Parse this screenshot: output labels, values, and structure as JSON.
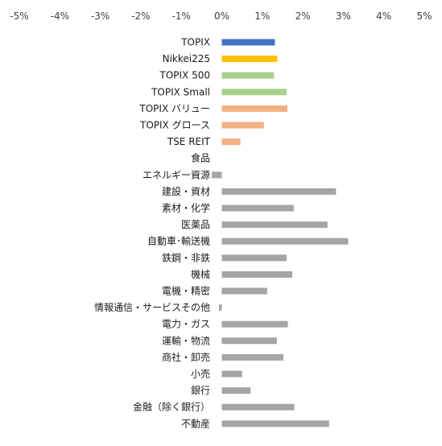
{
  "chart_data": {
    "type": "bar",
    "orientation": "horizontal",
    "title": "",
    "xlabel": "",
    "ylabel": "",
    "xlim": [
      -5,
      5
    ],
    "x_ticks": [
      "-5%",
      "-4%",
      "-3%",
      "-2%",
      "-1%",
      "0%",
      "1%",
      "2%",
      "3%",
      "4%",
      "5%"
    ],
    "x_axis_position": "top",
    "grid": false,
    "legend": "none",
    "categories": [
      "TOPIX",
      "Nikkei225",
      "TOPIX 500",
      "TOPIX Small",
      "TOPIX バリュー",
      "TOPIX グロース",
      "TSE REIT",
      "食品",
      "エネルギー資源",
      "建設・資材",
      "素材・化学",
      "医薬品",
      "自動車･輸送機",
      "鉄鋼・非鉄",
      "機械",
      "電機・精密",
      "情報通信・サービスその他",
      "電力・ガス",
      "運輸・物流",
      "商社・卸売",
      "小売",
      "銀行",
      "金融（除く銀行）",
      "不動産"
    ],
    "values": [
      1.31,
      1.37,
      1.29,
      1.6,
      1.62,
      1.04,
      0.46,
      0.0,
      -0.25,
      2.82,
      1.78,
      2.61,
      3.12,
      1.6,
      1.74,
      1.12,
      -0.07,
      1.63,
      1.36,
      1.52,
      0.5,
      0.71,
      1.79,
      2.65
    ],
    "colors": [
      "#4472c4",
      "#ffc000",
      "#a9d18e",
      "#a9d18e",
      "#f4b183",
      "#f4b183",
      "#f4b183",
      "#a5a5a5",
      "#a5a5a5",
      "#a5a5a5",
      "#a5a5a5",
      "#a5a5a5",
      "#a5a5a5",
      "#a5a5a5",
      "#a5a5a5",
      "#a5a5a5",
      "#a5a5a5",
      "#a5a5a5",
      "#a5a5a5",
      "#a5a5a5",
      "#a5a5a5",
      "#a5a5a5",
      "#a5a5a5",
      "#a5a5a5"
    ]
  }
}
